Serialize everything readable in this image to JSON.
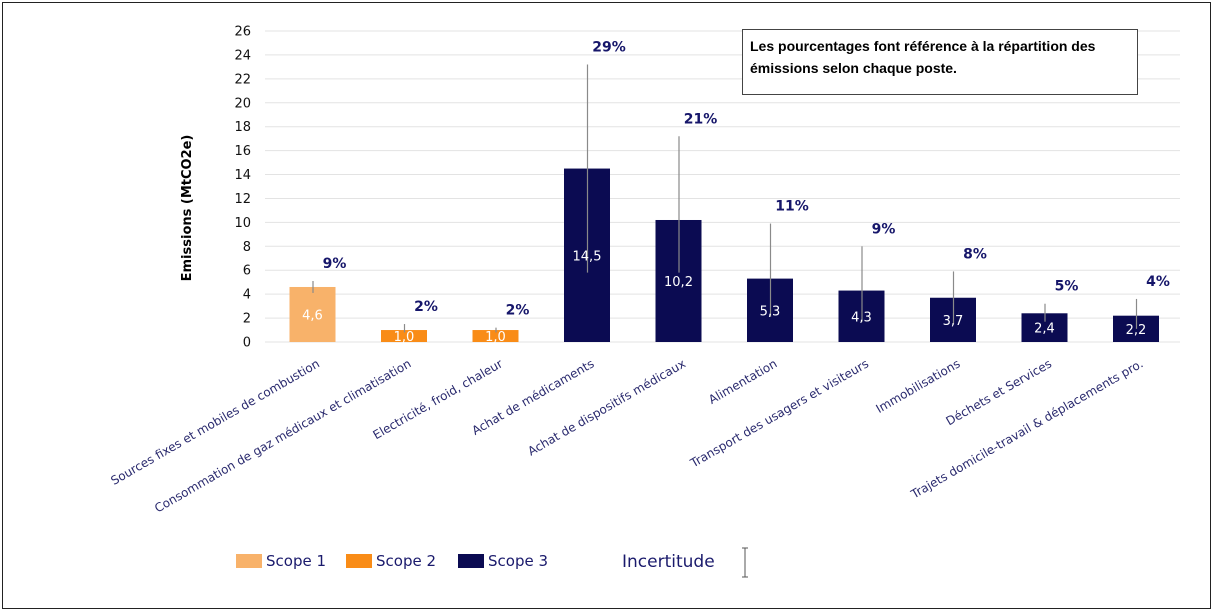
{
  "chart_data": {
    "type": "bar",
    "ylabel": "Emissions (MtCO2e)",
    "ylim": [
      0,
      26
    ],
    "yticks": [
      0,
      2,
      4,
      6,
      8,
      10,
      12,
      14,
      16,
      18,
      20,
      22,
      24,
      26
    ],
    "grid": true,
    "note": "Les pourcentages font référence à la répartition des émissions selon chaque poste.",
    "categories": [
      "Sources fixes et mobiles de combustion",
      "Consommation de gaz médicaux et climatisation",
      "Electricité, froid, chaleur",
      "Achat de médicaments",
      "Achat de dispositifs médicaux",
      "Alimentation",
      "Transport des usagers et visiteurs",
      "Immobilisations",
      "Déchets et Services",
      "Trajets domicile-travail & déplacements pro."
    ],
    "values": [
      4.6,
      1.0,
      1.0,
      14.5,
      10.2,
      5.3,
      4.3,
      3.7,
      2.4,
      2.2
    ],
    "value_labels": [
      "4,6",
      "1,0",
      "1,0",
      "14,5",
      "10,2",
      "5,3",
      "4,3",
      "3,7",
      "2,4",
      "2,2"
    ],
    "percent_labels": [
      "9%",
      "2%",
      "2%",
      "29%",
      "21%",
      "11%",
      "9%",
      "8%",
      "5%",
      "4%"
    ],
    "scope": [
      1,
      2,
      2,
      3,
      3,
      3,
      3,
      3,
      3,
      3
    ],
    "uncertainty_low": [
      4.1,
      0.8,
      0.8,
      5.8,
      5.8,
      2.1,
      1.7,
      1.5,
      1.7,
      1.1
    ],
    "uncertainty_high": [
      5.1,
      1.5,
      1.2,
      23.2,
      17.2,
      9.9,
      8.0,
      5.9,
      3.2,
      3.6
    ],
    "legend": {
      "placement": "bottom-left",
      "entries": [
        {
          "label": "Scope 1",
          "color": "#F8B26A"
        },
        {
          "label": "Scope 2",
          "color": "#F98C17"
        },
        {
          "label": "Scope 3",
          "color": "#0B0B52"
        }
      ],
      "uncertainty_label": "Incertitude"
    },
    "colors": {
      "scope1": "#F8B26A",
      "scope2": "#F98C17",
      "scope3": "#0B0B52",
      "percent_text": "#16166a",
      "error_bar": "#8a8a8a",
      "grid": "#e3e3e3"
    }
  }
}
